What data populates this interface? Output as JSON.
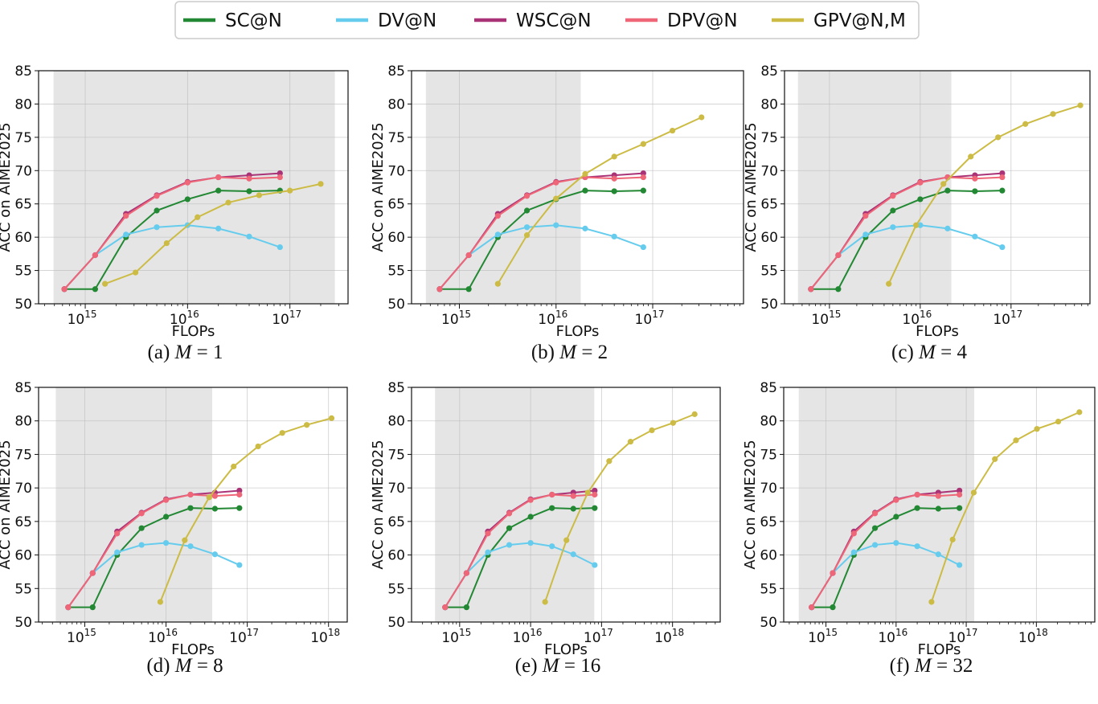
{
  "chart_data": {
    "type": "line",
    "legend": {
      "placement": "top-center",
      "entries": [
        {
          "key": "sc",
          "name": "SC@N",
          "color": "#228833"
        },
        {
          "key": "dv",
          "name": "DV@N",
          "color": "#66ccee"
        },
        {
          "key": "wsc",
          "name": "WSC@N",
          "color": "#aa3377"
        },
        {
          "key": "dpv",
          "name": "DPV@N",
          "color": "#ee6677"
        },
        {
          "key": "gpv",
          "name": "GPV@N,M",
          "color": "#ccbb44"
        }
      ]
    },
    "xlabel": "FLOPs",
    "ylabel": "ACC on AIME2025",
    "xscale": "log",
    "ylim": [
      50,
      85
    ],
    "yticks": [
      "50",
      "55",
      "60",
      "65",
      "70",
      "75",
      "80",
      "85"
    ],
    "grid": true,
    "shade_color": "#e5e5e5",
    "base_x": [
      625000000000000.0,
      1250000000000000.0,
      2500000000000000.0,
      5000000000000000.0,
      1e+16,
      2e+16,
      4e+16,
      8e+16
    ],
    "base_series": {
      "sc": [
        52.2,
        52.2,
        60.0,
        64.0,
        65.7,
        67.0,
        66.9,
        67.0
      ],
      "dv": [
        52.2,
        57.3,
        60.4,
        61.5,
        61.8,
        61.3,
        60.1,
        58.5
      ],
      "wsc": [
        52.2,
        57.3,
        63.5,
        66.3,
        68.3,
        69.0,
        69.3,
        69.6
      ],
      "dpv": [
        52.2,
        57.3,
        63.2,
        66.2,
        68.2,
        69.0,
        68.8,
        69.0
      ]
    },
    "panels": [
      {
        "label": "(a)",
        "var": "M",
        "value": "1",
        "xlim": [
          350000000000000.0,
          3.7e+17
        ],
        "shade": [
          490000000000000.0,
          2.75e+17
        ],
        "xticks": [
          {
            "base": "10",
            "exp": "15",
            "v": 1000000000000000.0
          },
          {
            "base": "10",
            "exp": "16",
            "v": 1e+16
          },
          {
            "base": "10",
            "exp": "17",
            "v": 1e+17
          }
        ],
        "gpv_x": [
          1560000000000000.0,
          3100000000000000.0,
          6250000000000000.0,
          1.25e+16,
          2.5e+16,
          5e+16,
          1e+17,
          2e+17
        ],
        "gpv_y": [
          53.0,
          54.7,
          59.1,
          63.0,
          65.2,
          66.3,
          67.0,
          68.0
        ]
      },
      {
        "label": "(b)",
        "var": "M",
        "value": "2",
        "xlim": [
          320000000000000.0,
          8.7e+17
        ],
        "shade": [
          450000000000000.0,
          1.8e+16
        ],
        "xticks": [
          {
            "base": "10",
            "exp": "15",
            "v": 1000000000000000.0
          },
          {
            "base": "10",
            "exp": "16",
            "v": 1e+16
          },
          {
            "base": "10",
            "exp": "17",
            "v": 1e+17
          }
        ],
        "gpv_x": [
          2500000000000000.0,
          5000000000000000.0,
          1e+16,
          2e+16,
          4e+16,
          8e+16,
          1.6e+17,
          3.2e+17
        ],
        "gpv_y": [
          53.0,
          60.3,
          65.8,
          69.5,
          72.1,
          74.0,
          76.0,
          78.0
        ]
      },
      {
        "label": "(c)",
        "var": "M",
        "value": "4",
        "xlim": [
          320000000000000.0,
          7.4e+17
        ],
        "shade": [
          450000000000000.0,
          2.2e+16
        ],
        "xticks": [
          {
            "base": "10",
            "exp": "15",
            "v": 1000000000000000.0
          },
          {
            "base": "10",
            "exp": "16",
            "v": 1e+16
          },
          {
            "base": "10",
            "exp": "17",
            "v": 1e+17
          }
        ],
        "gpv_x": [
          4500000000000000.0,
          9000000000000000.0,
          1.8e+16,
          3.6e+16,
          7.2e+16,
          1.44e+17,
          2.9e+17,
          5.8e+17
        ],
        "gpv_y": [
          53.0,
          61.8,
          68.0,
          72.1,
          75.0,
          77.0,
          78.5,
          79.8
        ]
      },
      {
        "label": "(d)",
        "var": "M",
        "value": "8",
        "xlim": [
          270000000000000.0,
          1.7e+18
        ],
        "shade": [
          440000000000000.0,
          3.7e+16
        ],
        "xticks": [
          {
            "base": "10",
            "exp": "15",
            "v": 1000000000000000.0
          },
          {
            "base": "10",
            "exp": "16",
            "v": 1e+16
          },
          {
            "base": "10",
            "exp": "17",
            "v": 1e+17
          },
          {
            "base": "10",
            "exp": "18",
            "v": 1e+18
          }
        ],
        "gpv_x": [
          8500000000000000.0,
          1.7e+16,
          3.4e+16,
          6.8e+16,
          1.36e+17,
          2.7e+17,
          5.4e+17,
          1.09e+18
        ],
        "gpv_y": [
          53.0,
          62.2,
          68.6,
          73.2,
          76.2,
          78.2,
          79.4,
          80.4
        ]
      },
      {
        "label": "(e)",
        "var": "M",
        "value": "16",
        "xlim": [
          210000000000000.0,
          4.7e+18
        ],
        "shade": [
          450000000000000.0,
          7.9e+16
        ],
        "xticks": [
          {
            "base": "10",
            "exp": "15",
            "v": 1000000000000000.0
          },
          {
            "base": "10",
            "exp": "16",
            "v": 1e+16
          },
          {
            "base": "10",
            "exp": "17",
            "v": 1e+17
          },
          {
            "base": "10",
            "exp": "18",
            "v": 1e+18
          }
        ],
        "gpv_x": [
          1.6e+16,
          3.2e+16,
          6.4e+16,
          1.28e+17,
          2.56e+17,
          5.12e+17,
          1.02e+18,
          2.05e+18
        ],
        "gpv_y": [
          53.0,
          62.2,
          69.3,
          74.0,
          76.9,
          78.6,
          79.7,
          81.0
        ]
      },
      {
        "label": "(f)",
        "var": "M",
        "value": "32",
        "xlim": [
          250000000000000.0,
          6.8e+18
        ],
        "shade": [
          410000000000000.0,
          1.3e+17
        ],
        "xticks": [
          {
            "base": "10",
            "exp": "15",
            "v": 1000000000000000.0
          },
          {
            "base": "10",
            "exp": "16",
            "v": 1e+16
          },
          {
            "base": "10",
            "exp": "17",
            "v": 1e+17
          },
          {
            "base": "10",
            "exp": "18",
            "v": 1e+18
          }
        ],
        "gpv_x": [
          3.2e+16,
          6.4e+16,
          1.28e+17,
          2.56e+17,
          5.12e+17,
          1.02e+18,
          2.05e+18,
          4.1e+18
        ],
        "gpv_y": [
          53.0,
          62.3,
          69.3,
          74.3,
          77.1,
          78.8,
          79.9,
          81.3
        ]
      }
    ]
  }
}
